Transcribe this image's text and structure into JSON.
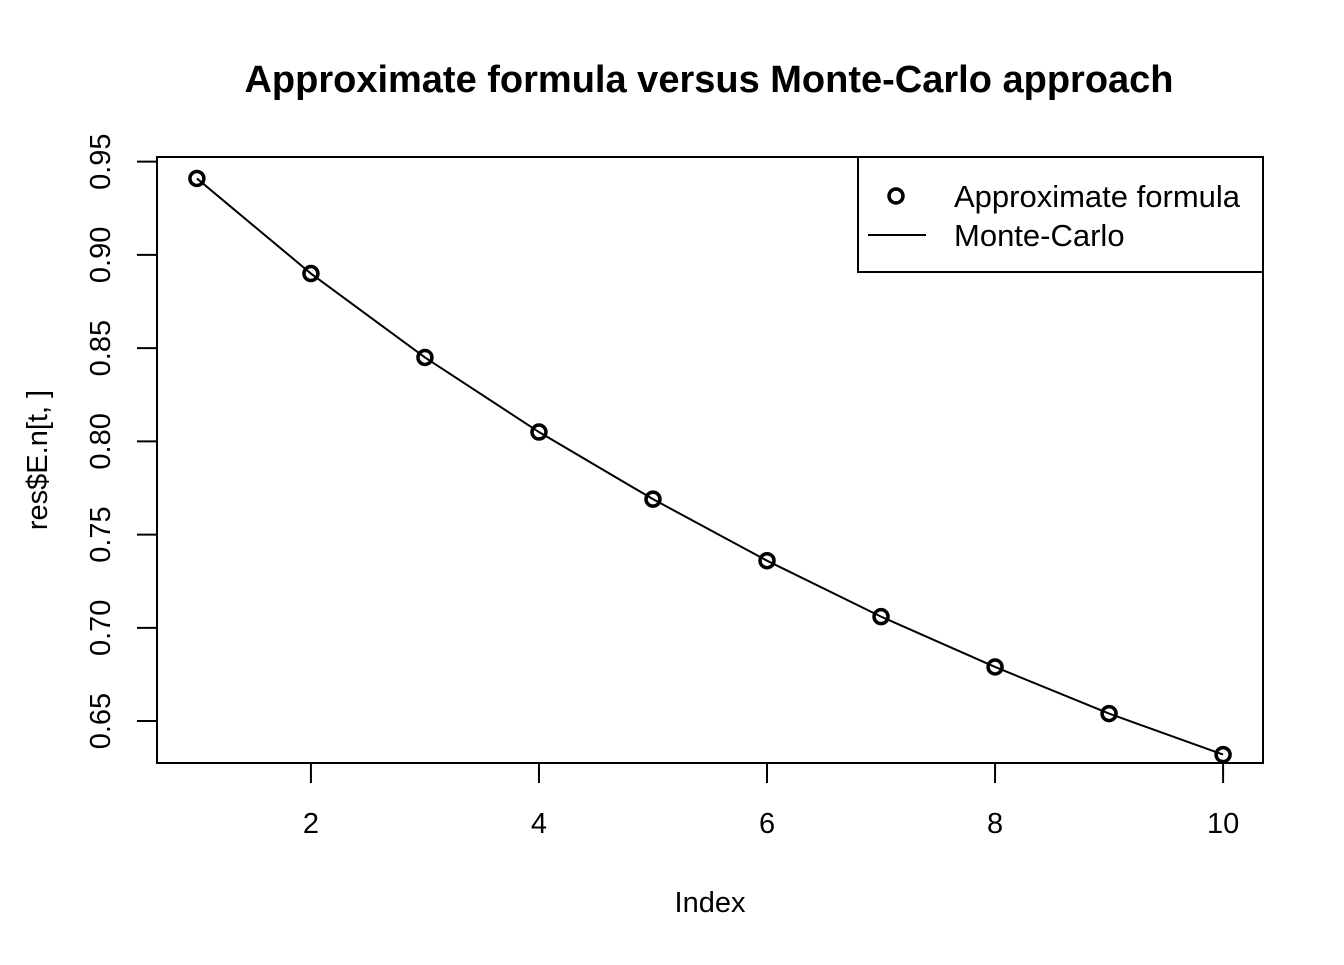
{
  "chart_data": {
    "type": "line",
    "title": "Approximate formula versus Monte-Carlo approach",
    "xlabel": "Index",
    "ylabel": "res$E.n[t, ]",
    "xlim": [
      0.65,
      10.35
    ],
    "ylim": [
      0.6275,
      0.9525
    ],
    "x_ticks": [
      2,
      4,
      6,
      8,
      10
    ],
    "x_tick_labels": [
      "2",
      "4",
      "6",
      "8",
      "10"
    ],
    "y_ticks": [
      0.65,
      0.7,
      0.75,
      0.8,
      0.85,
      0.9,
      0.95
    ],
    "y_tick_labels": [
      "0.65",
      "0.70",
      "0.75",
      "0.80",
      "0.85",
      "0.90",
      "0.95"
    ],
    "grid": false,
    "legend_position": "top-right",
    "x": [
      1,
      2,
      3,
      4,
      5,
      6,
      7,
      8,
      9,
      10
    ],
    "series": [
      {
        "name": "Approximate formula",
        "style": "points",
        "marker": "open-circle",
        "color": "#000000",
        "values": [
          0.941,
          0.89,
          0.845,
          0.805,
          0.769,
          0.736,
          0.706,
          0.679,
          0.654,
          0.632
        ]
      },
      {
        "name": "Monte-Carlo",
        "style": "line",
        "color": "#000000",
        "values": [
          0.941,
          0.89,
          0.845,
          0.805,
          0.769,
          0.736,
          0.706,
          0.679,
          0.654,
          0.632
        ]
      }
    ]
  }
}
